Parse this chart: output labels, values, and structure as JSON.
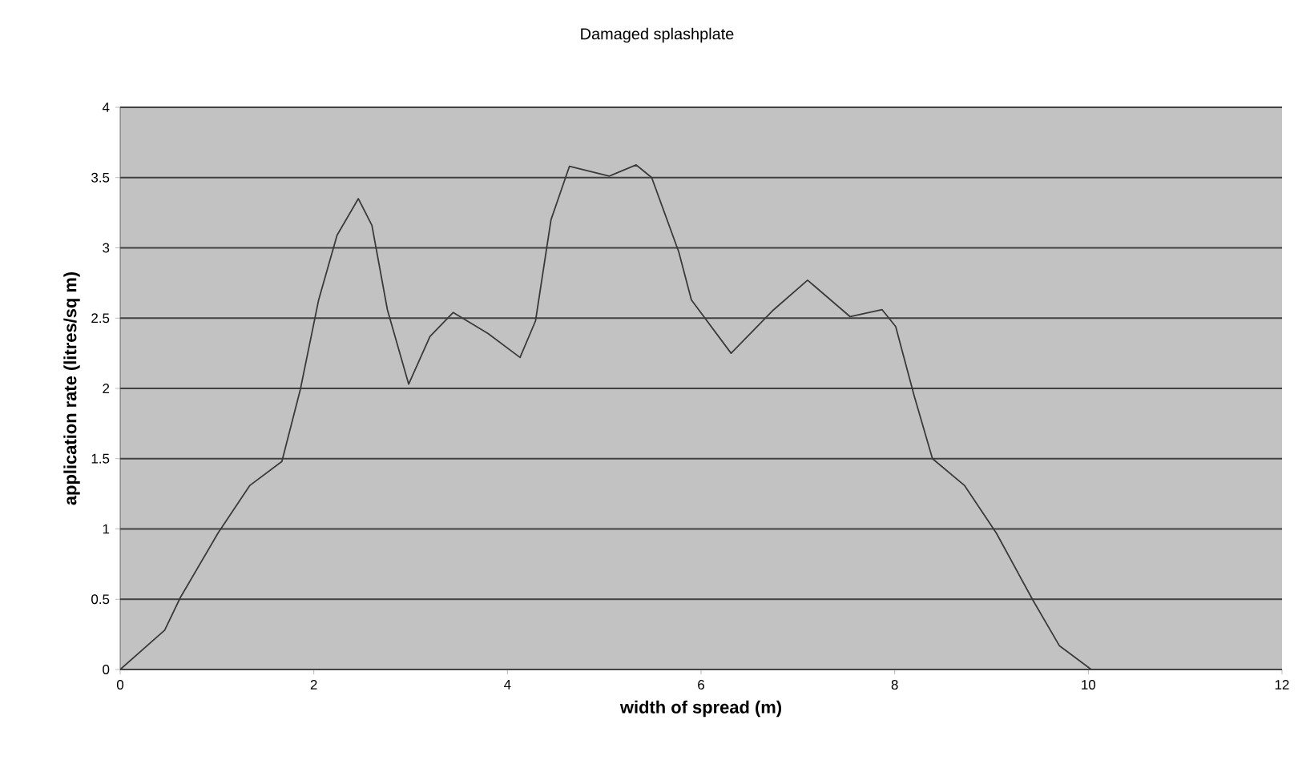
{
  "chart_data": {
    "type": "line",
    "title": "Damaged splashplate",
    "xlabel": "width of spread (m)",
    "ylabel": "application rate (litres/sq m)",
    "xlim": [
      0,
      12
    ],
    "xticks": [
      0,
      2,
      4,
      6,
      8,
      10,
      12
    ],
    "ylim": [
      0,
      4
    ],
    "yticks": [
      0,
      0.5,
      1,
      1.5,
      2,
      2.5,
      3,
      3.5,
      4
    ],
    "grid": "y",
    "marker": "none",
    "line_style": "solid",
    "series": [
      {
        "color": "#3a3a3a",
        "x": [
          0,
          0.46,
          0.62,
          1.01,
          1.34,
          1.67,
          1.86,
          2.05,
          2.24,
          2.46,
          2.6,
          2.76,
          2.98,
          3.2,
          3.44,
          3.8,
          4.13,
          4.29,
          4.45,
          4.64,
          5.05,
          5.33,
          5.49,
          5.77,
          5.9,
          6.31,
          6.75,
          7.1,
          7.54,
          7.87,
          8.01,
          8.2,
          8.39,
          8.72,
          9.05,
          9.43,
          9.7,
          10.03
        ],
        "values": [
          0,
          0.28,
          0.51,
          0.97,
          1.31,
          1.48,
          1.99,
          2.63,
          3.09,
          3.35,
          3.16,
          2.56,
          2.03,
          2.37,
          2.54,
          2.39,
          2.22,
          2.48,
          3.2,
          3.58,
          3.51,
          3.59,
          3.5,
          2.97,
          2.63,
          2.25,
          2.56,
          2.77,
          2.51,
          2.56,
          2.44,
          1.95,
          1.5,
          1.31,
          0.97,
          0.49,
          0.17,
          0
        ]
      }
    ]
  }
}
